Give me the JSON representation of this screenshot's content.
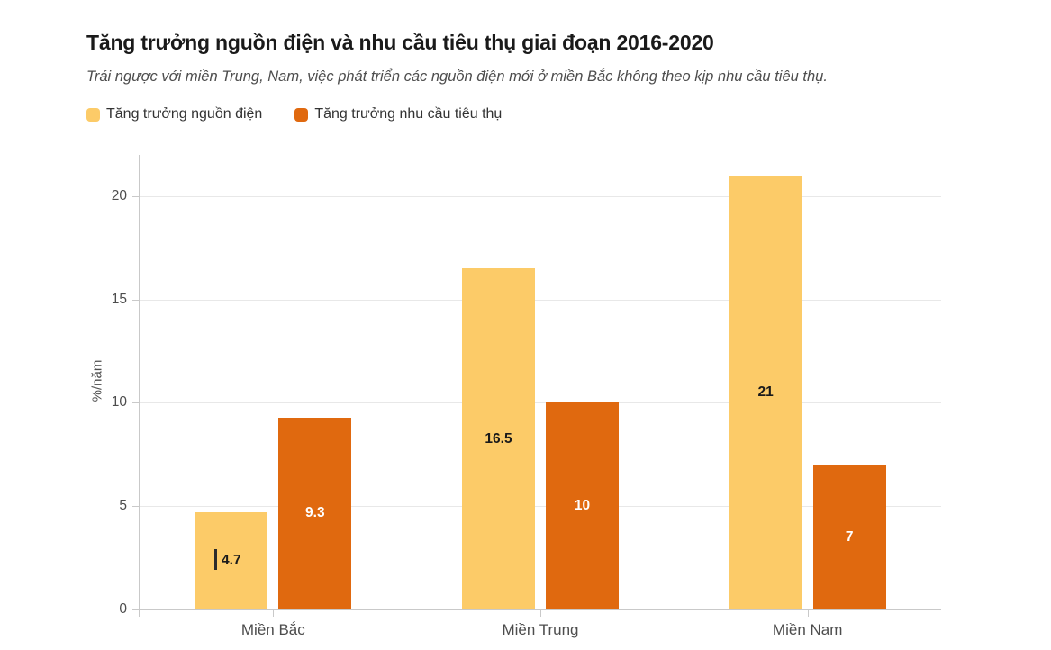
{
  "header": {
    "title": "Tăng trưởng nguồn điện và nhu cầu tiêu thụ giai đoạn 2016-2020",
    "subtitle": "Trái ngược với miền Trung, Nam, việc phát triển các nguồn điện mới ở miền Bắc không theo kịp nhu cầu tiêu thụ."
  },
  "legend": {
    "items": [
      {
        "label": "Tăng trưởng nguồn điện",
        "color": "#FCCB68"
      },
      {
        "label": "Tăng trưởng nhu cầu tiêu thụ",
        "color": "#E0690F"
      }
    ]
  },
  "chart_data": {
    "type": "bar",
    "title": "Tăng trưởng nguồn điện và nhu cầu tiêu thụ giai đoạn 2016-2020",
    "subtitle": "Trái ngược với miền Trung, Nam, việc phát triển các nguồn điện mới ở miền Bắc không theo kịp nhu cầu tiêu thụ.",
    "categories": [
      "Miền Bắc",
      "Miền Trung",
      "Miền Nam"
    ],
    "series": [
      {
        "name": "Tăng trưởng nguồn điện",
        "color": "#FCCB68",
        "label_color": "#1a1a1a",
        "values": [
          4.7,
          16.5,
          21
        ]
      },
      {
        "name": "Tăng trưởng nhu cầu tiêu thụ",
        "color": "#E0690F",
        "label_color": "#ffffff",
        "values": [
          9.3,
          10,
          7
        ]
      }
    ],
    "xlabel": "",
    "ylabel": "%/năm",
    "yticks": [
      0,
      5,
      10,
      15,
      20
    ],
    "ylim": [
      0,
      22
    ],
    "grid": true,
    "legend_position": "top"
  },
  "colors": {
    "background": "#ffffff",
    "gridline": "#e8e8e8",
    "axis": "#c9c9c9",
    "title_text": "#1a1a1a",
    "secondary_text": "#4d4d4d"
  }
}
